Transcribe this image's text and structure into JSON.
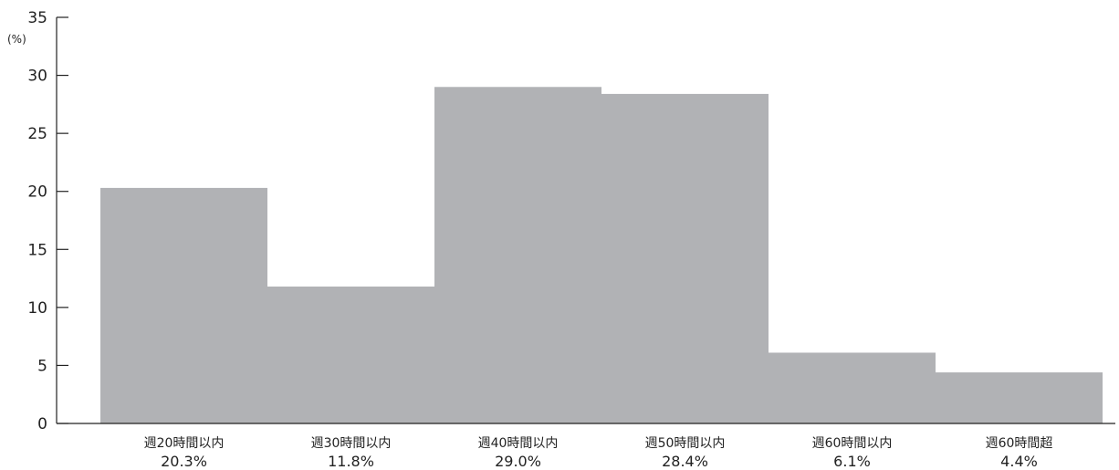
{
  "chart_data": {
    "type": "bar",
    "y_unit_label": "(%)",
    "categories": [
      "週20時間以内",
      "週30時間以内",
      "週40時間以内",
      "週50時間以内",
      "週60時間以内",
      "週60時間超"
    ],
    "values": [
      20.3,
      11.8,
      29.0,
      28.4,
      6.1,
      4.4
    ],
    "value_labels": [
      "20.3%",
      "11.8%",
      "29.0%",
      "28.4%",
      "6.1%",
      "4.4%"
    ],
    "y_ticks": [
      0,
      5,
      10,
      15,
      20,
      25,
      30,
      35
    ],
    "ylim": [
      0,
      35
    ],
    "grid": false,
    "bar_color": "#b1b2b5",
    "axis_color": "#222222"
  }
}
